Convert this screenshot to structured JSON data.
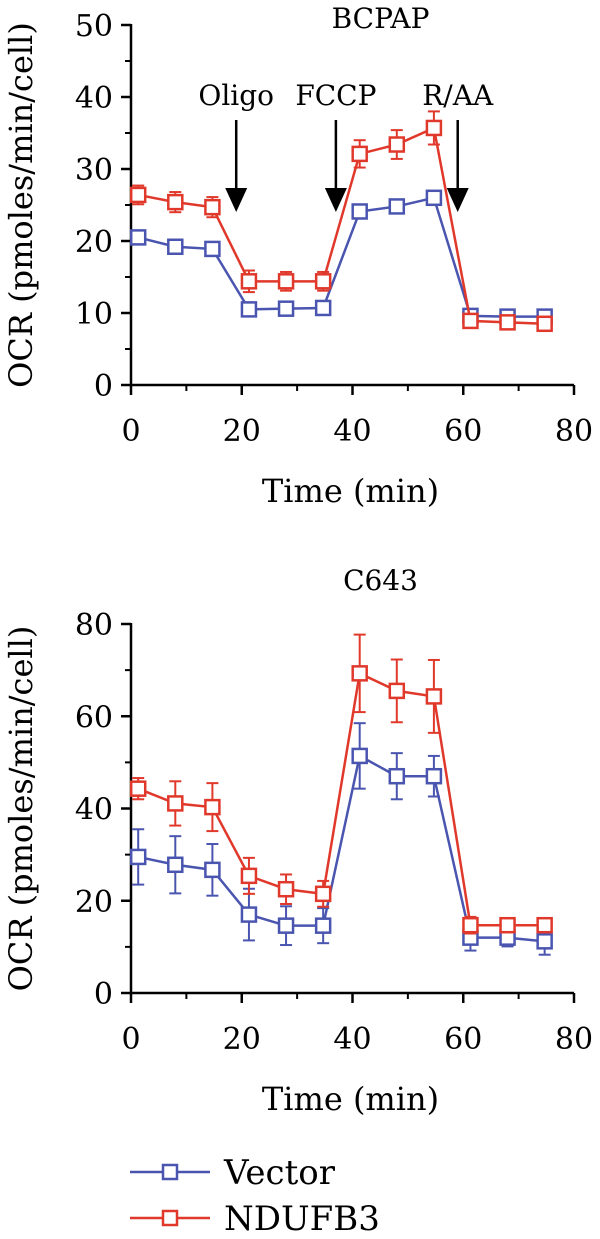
{
  "colors": {
    "vector": "#4a55b0",
    "ndufb3": "#e0392b",
    "axis": "#000000"
  },
  "legend": [
    {
      "name": "Vector",
      "color": "#4a55b0"
    },
    {
      "name": "NDUFB3",
      "color": "#e0392b"
    }
  ],
  "chart_data": [
    {
      "type": "line",
      "title": "BCPAP",
      "xlabel": "Time (min)",
      "ylabel": "OCR (pmoles/min/cell)",
      "xlim": [
        0,
        80
      ],
      "ylim": [
        0,
        50
      ],
      "xticks": [
        0,
        20,
        40,
        60,
        80
      ],
      "yticks": [
        0,
        10,
        20,
        30,
        40,
        50
      ],
      "annotations": [
        {
          "label": "Oligo",
          "x": 19
        },
        {
          "label": "FCCP",
          "x": 37
        },
        {
          "label": "R/AA",
          "x": 59
        }
      ],
      "x": [
        1.3,
        8,
        14.7,
        21.3,
        28,
        34.7,
        41.3,
        48,
        54.7,
        61.3,
        68,
        74.7
      ],
      "series": [
        {
          "name": "Vector",
          "values": [
            20.5,
            19.2,
            18.9,
            10.5,
            10.6,
            10.7,
            24.1,
            24.8,
            26.0,
            9.6,
            9.5,
            9.5
          ],
          "errors": [
            0.8,
            0.7,
            0.7,
            0.5,
            0.5,
            0.5,
            0.7,
            0.7,
            0.7,
            0.6,
            0.5,
            0.5
          ]
        },
        {
          "name": "NDUFB3",
          "values": [
            26.4,
            25.4,
            24.7,
            14.4,
            14.4,
            14.4,
            32.1,
            33.4,
            35.7,
            8.9,
            8.7,
            8.5
          ],
          "errors": [
            1.3,
            1.4,
            1.4,
            1.5,
            1.3,
            1.3,
            1.9,
            2.0,
            2.3,
            0.7,
            0.7,
            0.8
          ]
        }
      ]
    },
    {
      "type": "line",
      "title": "C643",
      "xlabel": "Time (min)",
      "ylabel": "OCR (pmoles/min/cell)",
      "xlim": [
        0,
        80
      ],
      "ylim": [
        0,
        80
      ],
      "xticks": [
        0,
        20,
        40,
        60,
        80
      ],
      "yticks": [
        0,
        20,
        40,
        60,
        80
      ],
      "annotations": [],
      "x": [
        1.3,
        8,
        14.7,
        21.3,
        28,
        34.7,
        41.3,
        48,
        54.7,
        61.3,
        68,
        74.7
      ],
      "series": [
        {
          "name": "Vector",
          "values": [
            29.5,
            27.8,
            26.7,
            17.0,
            14.6,
            14.6,
            51.4,
            47.0,
            47.0,
            12.0,
            12.0,
            11.2
          ],
          "errors": [
            6.0,
            6.2,
            5.6,
            5.6,
            4.2,
            3.8,
            7.1,
            5.0,
            4.4,
            2.8,
            1.9,
            2.9
          ]
        },
        {
          "name": "NDUFB3",
          "values": [
            44.3,
            41.1,
            40.3,
            25.4,
            22.5,
            21.5,
            69.3,
            65.5,
            64.3,
            14.7,
            14.7,
            14.7
          ],
          "errors": [
            2.3,
            4.8,
            5.2,
            3.9,
            3.2,
            2.8,
            8.4,
            6.8,
            7.9,
            1.8,
            1.5,
            1.5
          ]
        }
      ]
    }
  ]
}
